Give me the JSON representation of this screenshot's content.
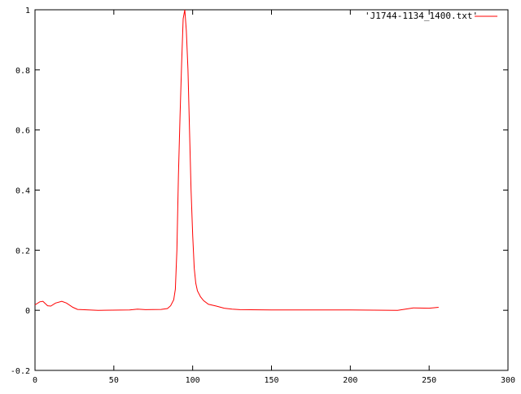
{
  "chart_data": {
    "type": "line",
    "title": "",
    "xlabel": "",
    "ylabel": "",
    "xlim": [
      0,
      300
    ],
    "ylim": [
      -0.2,
      1
    ],
    "grid": false,
    "legend_position": "top-right",
    "x_ticks": [
      "0",
      "50",
      "100",
      "150",
      "200",
      "250",
      "300"
    ],
    "y_ticks": [
      "-0.2",
      "0",
      "0.2",
      "0.4",
      "0.6",
      "0.8",
      "1"
    ],
    "series": [
      {
        "name": "'J1744-1134_1400.txt'",
        "color": "#ff0000",
        "x": [
          0,
          3,
          5,
          8,
          10,
          13,
          17,
          20,
          24,
          27,
          30,
          40,
          60,
          65,
          70,
          80,
          84,
          86,
          88,
          89,
          90,
          91,
          92,
          93,
          94,
          95,
          96,
          97,
          98,
          99,
          100,
          101,
          102,
          103,
          105,
          107,
          110,
          115,
          120,
          125,
          130,
          150,
          170,
          200,
          230,
          235,
          240,
          250,
          256
        ],
        "y": [
          0.018,
          0.028,
          0.03,
          0.015,
          0.014,
          0.024,
          0.03,
          0.024,
          0.01,
          0.003,
          0.002,
          0.0,
          0.001,
          0.004,
          0.002,
          0.003,
          0.006,
          0.015,
          0.035,
          0.07,
          0.2,
          0.45,
          0.65,
          0.82,
          0.97,
          1.0,
          0.93,
          0.8,
          0.6,
          0.4,
          0.25,
          0.14,
          0.09,
          0.065,
          0.045,
          0.032,
          0.02,
          0.014,
          0.007,
          0.004,
          0.002,
          0.001,
          0.001,
          0.001,
          0.0,
          0.004,
          0.008,
          0.007,
          0.01
        ]
      }
    ]
  }
}
